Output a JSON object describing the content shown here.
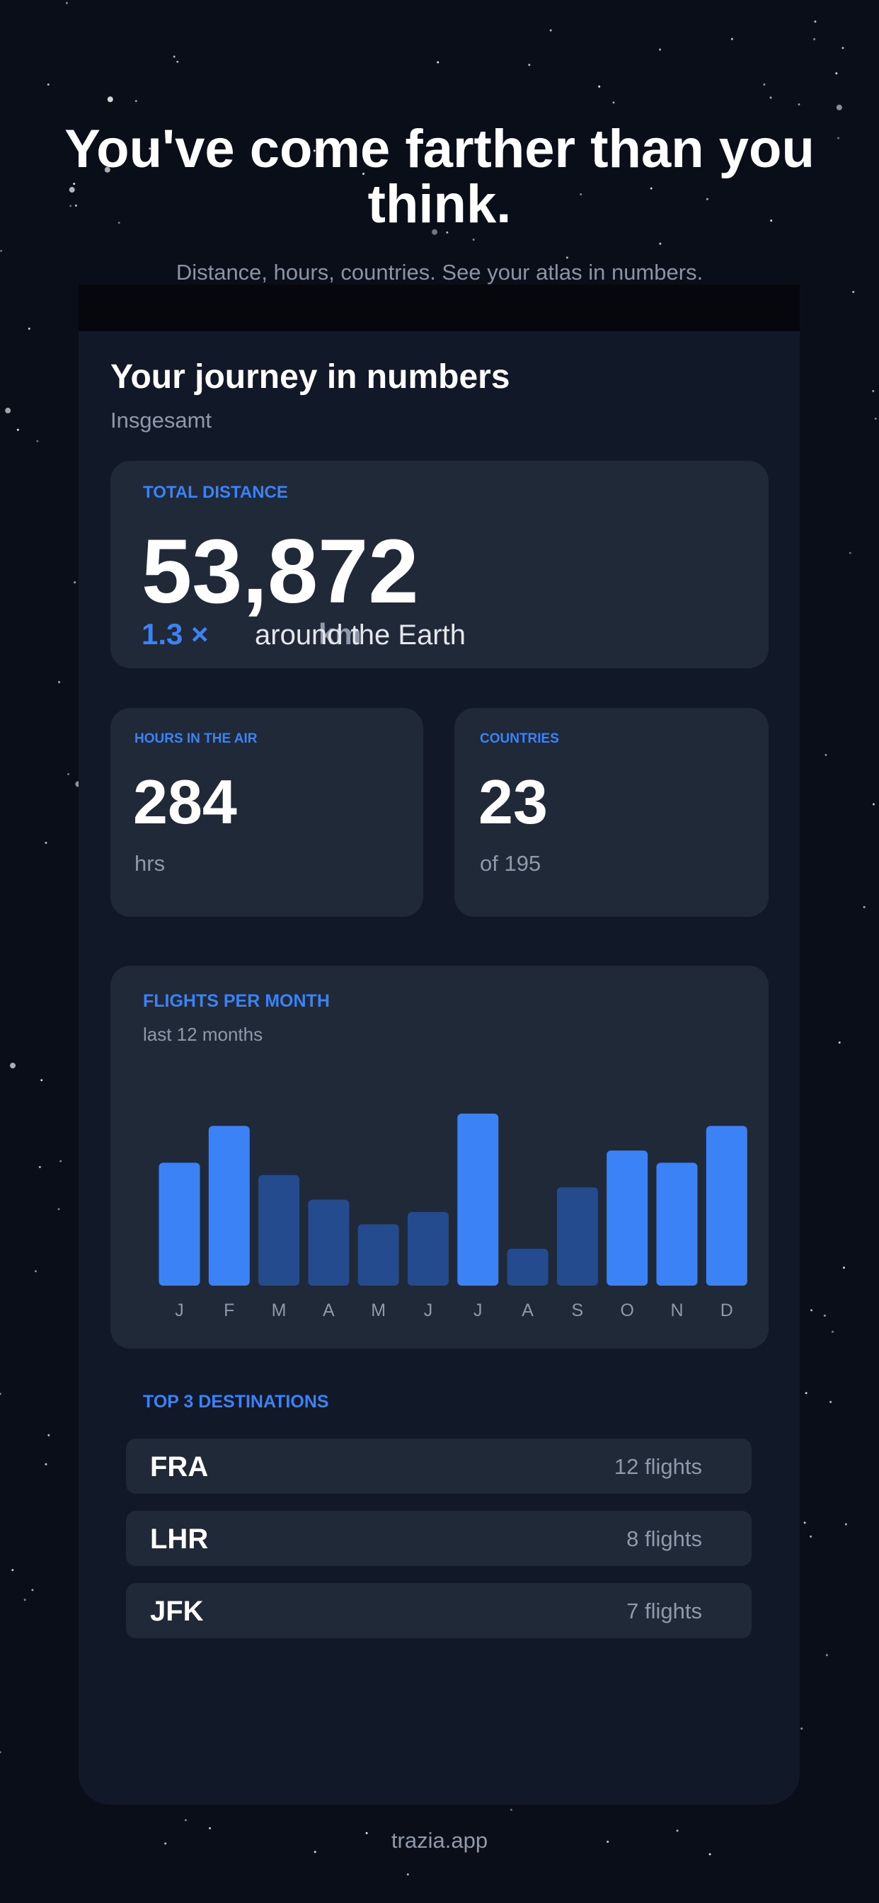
{
  "header": {
    "title": "You've come farther than you think.",
    "subtitle": "Distance, hours, countries. See your atlas in numbers."
  },
  "card": {
    "title": "Your journey in numbers",
    "subtitle": "Insgesamt"
  },
  "total_distance": {
    "label": "TOTAL DISTANCE",
    "value": "53,872",
    "unit": "km",
    "multiplier": "1.3 ×",
    "comparison": "around the Earth"
  },
  "hours": {
    "label": "HOURS IN THE AIR",
    "value": "284",
    "unit": "hrs"
  },
  "countries": {
    "label": "COUNTRIES",
    "value": "23",
    "unit": "of 195"
  },
  "chart_data": {
    "type": "bar",
    "title": "FLIGHTS PER MONTH",
    "subtitle": "last 12 months",
    "categories": [
      "J",
      "F",
      "M",
      "A",
      "M",
      "J",
      "J",
      "A",
      "S",
      "O",
      "N",
      "D"
    ],
    "values": [
      10,
      13,
      9,
      7,
      5,
      6,
      14,
      3,
      8,
      11,
      10,
      13
    ],
    "colors": [
      "#3b82f6",
      "#3b82f6",
      "#234b8e",
      "#234b8e",
      "#234b8e",
      "#234b8e",
      "#3b82f6",
      "#234b8e",
      "#234b8e",
      "#3b82f6",
      "#3b82f6",
      "#3b82f6"
    ]
  },
  "destinations": {
    "title": "TOP 3 DESTINATIONS",
    "rows": [
      {
        "code": "FRA",
        "flights": "12 flights"
      },
      {
        "code": "LHR",
        "flights": "8 flights"
      },
      {
        "code": "JFK",
        "flights": "7 flights"
      }
    ]
  },
  "footer": {
    "text": "trazia.app"
  }
}
